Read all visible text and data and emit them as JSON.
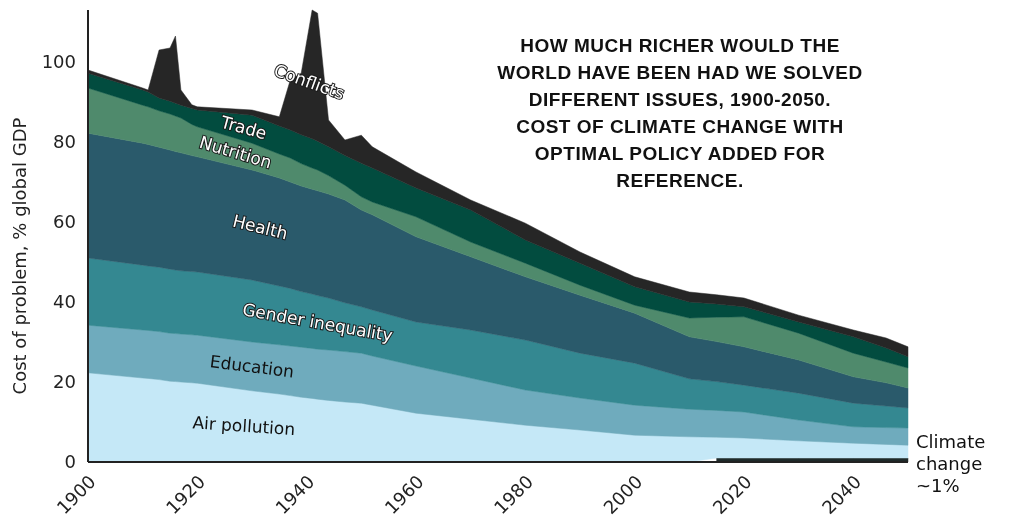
{
  "chart_data": {
    "type": "area",
    "stacked": true,
    "title": "HOW MUCH RICHER WOULD THE WORLD HAVE BEEN HAD WE SOLVED DIFFERENT ISSUES, 1900-2050. COST OF CLIMATE CHANGE WITH OPTIMAL POLICY ADDED FOR REFERENCE.",
    "ylabel": "Cost of problem, % global GDP",
    "x": [
      1900,
      1910,
      1911,
      1913,
      1915,
      1916,
      1917,
      1919,
      1920,
      1930,
      1935,
      1937,
      1939,
      1941,
      1942,
      1944,
      1947,
      1950,
      1952,
      1960,
      1970,
      1980,
      1990,
      2000,
      2010,
      2015,
      2020,
      2030,
      2040,
      2046,
      2050
    ],
    "xlim": [
      1900,
      2050
    ],
    "xticks": [
      1900,
      1920,
      1940,
      1960,
      1980,
      2000,
      2020,
      2040
    ],
    "ylim": [
      0,
      113
    ],
    "yticks": [
      0,
      20,
      40,
      60,
      80,
      100
    ],
    "grid": false,
    "series": [
      {
        "name": "Climate change ~1%",
        "color": "#1e2a2a",
        "values": [
          null,
          null,
          null,
          null,
          null,
          null,
          null,
          null,
          null,
          null,
          null,
          null,
          null,
          null,
          null,
          null,
          null,
          null,
          null,
          null,
          null,
          null,
          null,
          null,
          null,
          1,
          1,
          1,
          1,
          1,
          1
        ]
      },
      {
        "name": "Air pollution",
        "color": "#c5e8f7",
        "values": [
          22.3,
          21,
          20.9,
          20.6,
          20.2,
          20.1,
          20,
          19.8,
          19.7,
          17.8,
          17,
          16.6,
          16.2,
          15.9,
          15.7,
          15.4,
          15,
          14.7,
          14.2,
          12.2,
          10.7,
          9.2,
          8,
          6.7,
          6.3,
          5.2,
          5,
          4.3,
          3.7,
          3.4,
          3.2
        ]
      },
      {
        "name": "Education",
        "color": "#6fabbd",
        "values": [
          11.9,
          12,
          12,
          12,
          12,
          12,
          12,
          12,
          12,
          12.2,
          12.3,
          12.4,
          12.5,
          12.5,
          12.5,
          12.6,
          12.6,
          12.5,
          12.3,
          11.8,
          10.3,
          8.8,
          8,
          7.5,
          6.9,
          6.7,
          6.5,
          5.2,
          4.1,
          4.2,
          4.3
        ]
      },
      {
        "name": "Gender inequality",
        "color": "#348891",
        "values": [
          16.8,
          16.2,
          16.1,
          16.1,
          16,
          15.9,
          15.8,
          15.8,
          15.8,
          15.5,
          14.7,
          14.4,
          13.9,
          13.6,
          13.4,
          13,
          12.2,
          11.6,
          11.5,
          11,
          12,
          12.5,
          11.2,
          10.5,
          7.6,
          7.2,
          6.7,
          6.7,
          5.9,
          5.4,
          5
        ]
      },
      {
        "name": "Health",
        "color": "#2a5a6b",
        "values": [
          31.2,
          30.5,
          30.4,
          30,
          29.8,
          29.6,
          29.5,
          29,
          28.8,
          27.5,
          27,
          26.6,
          26.4,
          26.2,
          26.2,
          26,
          25.7,
          24.2,
          23.8,
          21.3,
          18.3,
          15.8,
          14.5,
          12.5,
          10.5,
          10,
          9.6,
          8.3,
          6.6,
          5.8,
          5
        ]
      },
      {
        "name": "Nutrition",
        "color": "#4f8a6c",
        "values": [
          11.3,
          9.5,
          9.4,
          9.1,
          9,
          8.9,
          8.7,
          7.8,
          7.5,
          6.7,
          6,
          6,
          5.6,
          5.3,
          5.2,
          4.6,
          3.7,
          3.3,
          3.2,
          5,
          3.7,
          3.4,
          2.5,
          2,
          4.7,
          6.1,
          7.5,
          6.7,
          5.9,
          5.2,
          5
        ]
      },
      {
        "name": "Trade",
        "color": "#024c3f",
        "values": [
          3.7,
          3.8,
          3.7,
          3.2,
          3.2,
          3.2,
          3.2,
          4,
          4.2,
          7,
          7,
          7,
          7.2,
          7.3,
          7.2,
          7.2,
          7.4,
          8.4,
          8.5,
          7.2,
          8,
          5.8,
          5.5,
          4.6,
          4,
          3.3,
          2.5,
          2.8,
          4.1,
          3.5,
          2.8
        ]
      },
      {
        "name": "Conflicts",
        "color": "#262626",
        "values": [
          0.8,
          0.5,
          0.5,
          12,
          13.3,
          16.8,
          3.8,
          0.9,
          0.8,
          1.3,
          2.3,
          12.5,
          15.4,
          32.2,
          32,
          6.7,
          3.9,
          7,
          5.3,
          4,
          2.5,
          4.2,
          2.8,
          2.5,
          2.5,
          2.3,
          2.2,
          1.7,
          1.7,
          2.5,
          2.5
        ]
      }
    ]
  }
}
